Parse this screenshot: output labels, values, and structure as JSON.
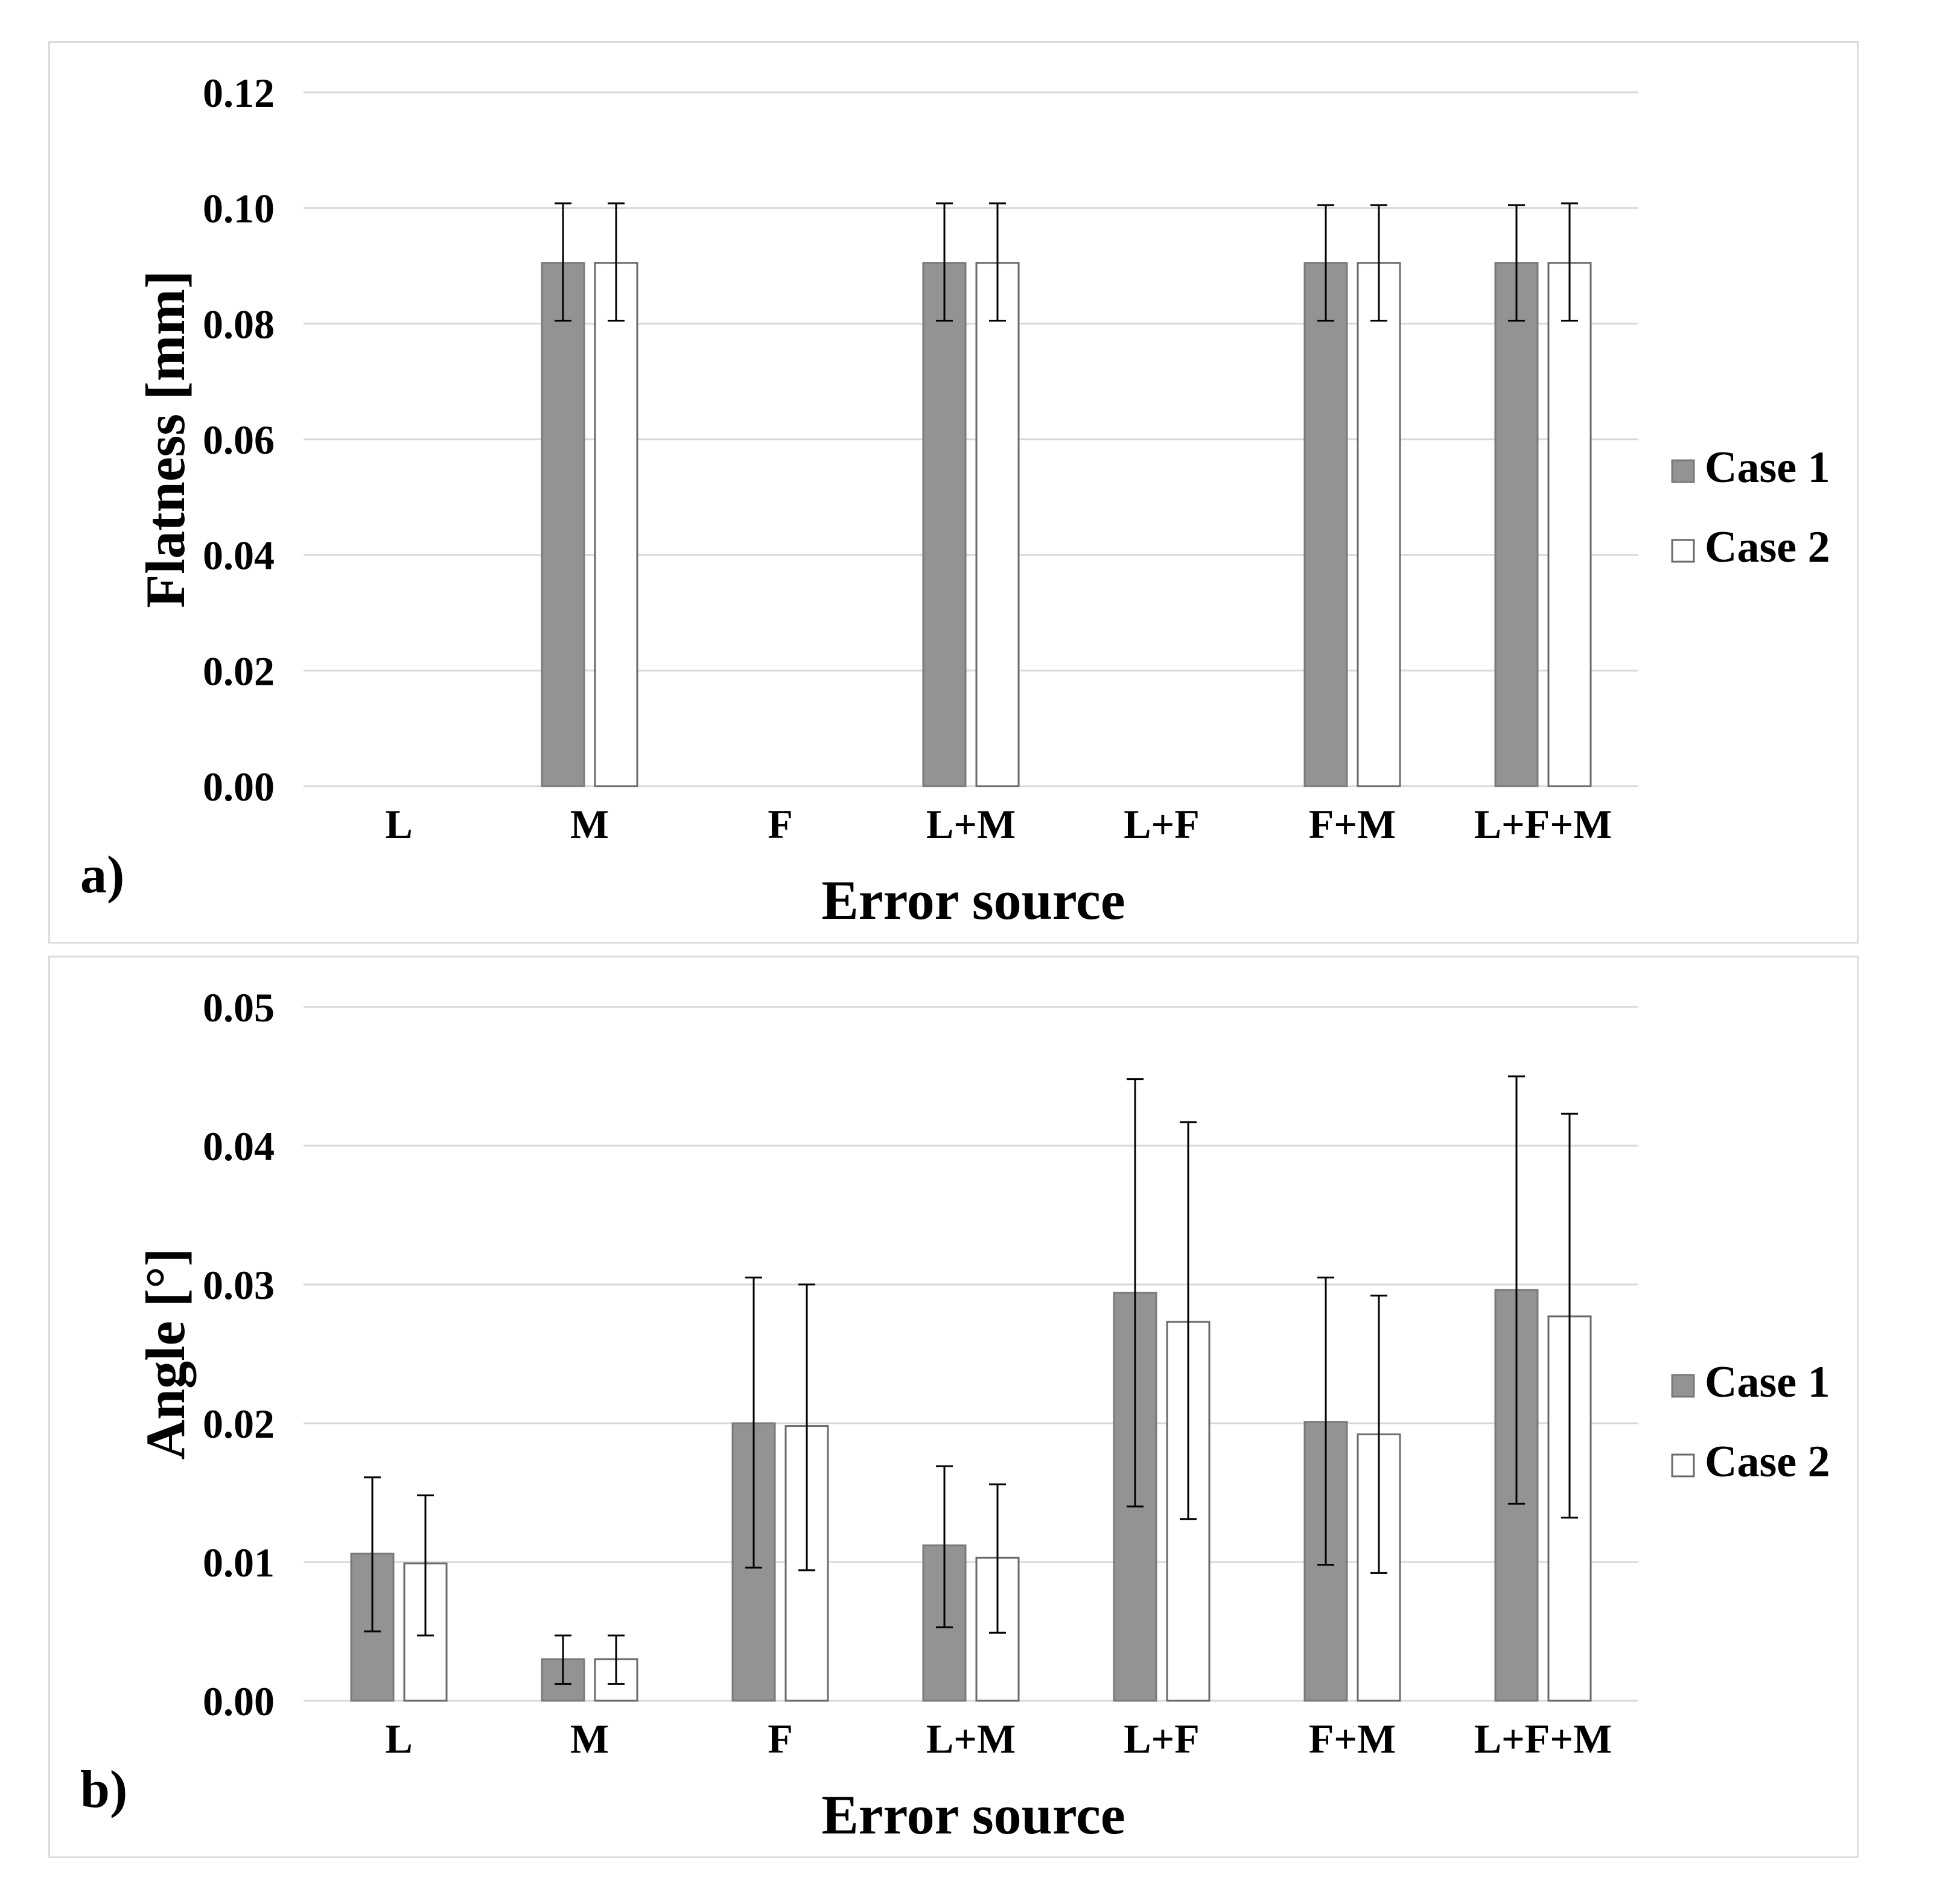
{
  "chart_data": [
    {
      "type": "bar",
      "panel_label": "a)",
      "xlabel": "Error source",
      "ylabel": "Flatness [mm]",
      "ylim": [
        0,
        0.12
      ],
      "yticks": [
        "0.00",
        "0.02",
        "0.04",
        "0.06",
        "0.08",
        "0.10",
        "0.12"
      ],
      "categories": [
        "L",
        "M",
        "F",
        "L+M",
        "L+F",
        "F+M",
        "L+F+M"
      ],
      "grid": true,
      "legend_position": "right",
      "series": [
        {
          "name": "Case 1",
          "color": "#939393",
          "values": [
            null,
            0.0905,
            null,
            0.0905,
            null,
            0.0905,
            0.0905
          ],
          "error_low": [
            null,
            0.0805,
            null,
            0.0805,
            null,
            0.0805,
            0.0805
          ],
          "error_high": [
            null,
            0.1008,
            null,
            0.1008,
            null,
            0.1005,
            0.1005
          ]
        },
        {
          "name": "Case 2",
          "color": "#ffffff",
          "values": [
            null,
            0.0905,
            null,
            0.0905,
            null,
            0.0905,
            0.0905
          ],
          "error_low": [
            null,
            0.0805,
            null,
            0.0805,
            null,
            0.0805,
            0.0805
          ],
          "error_high": [
            null,
            0.1008,
            null,
            0.1008,
            null,
            0.1005,
            0.1008
          ]
        }
      ]
    },
    {
      "type": "bar",
      "panel_label": "b)",
      "xlabel": "Error source",
      "ylabel": "Angle [°]",
      "ylim": [
        0,
        0.05
      ],
      "yticks": [
        "0.00",
        "0.01",
        "0.02",
        "0.03",
        "0.04",
        "0.05"
      ],
      "categories": [
        "L",
        "M",
        "F",
        "L+M",
        "L+F",
        "F+M",
        "L+F+M"
      ],
      "grid": true,
      "legend_position": "right",
      "series": [
        {
          "name": "Case 1",
          "color": "#939393",
          "values": [
            0.0106,
            0.003,
            0.02,
            0.0112,
            0.0294,
            0.0201,
            0.0296
          ],
          "error_low": [
            0.005,
            0.0012,
            0.0096,
            0.0053,
            0.014,
            0.0098,
            0.0142
          ],
          "error_high": [
            0.0161,
            0.0047,
            0.0305,
            0.0169,
            0.0448,
            0.0305,
            0.045
          ]
        },
        {
          "name": "Case 2",
          "color": "#ffffff",
          "values": [
            0.0099,
            0.003,
            0.0198,
            0.0103,
            0.0273,
            0.0192,
            0.0277
          ],
          "error_low": [
            0.0047,
            0.0012,
            0.0094,
            0.0049,
            0.0131,
            0.0092,
            0.0132
          ],
          "error_high": [
            0.0148,
            0.0047,
            0.03,
            0.0156,
            0.0417,
            0.0292,
            0.0423
          ]
        }
      ]
    }
  ]
}
